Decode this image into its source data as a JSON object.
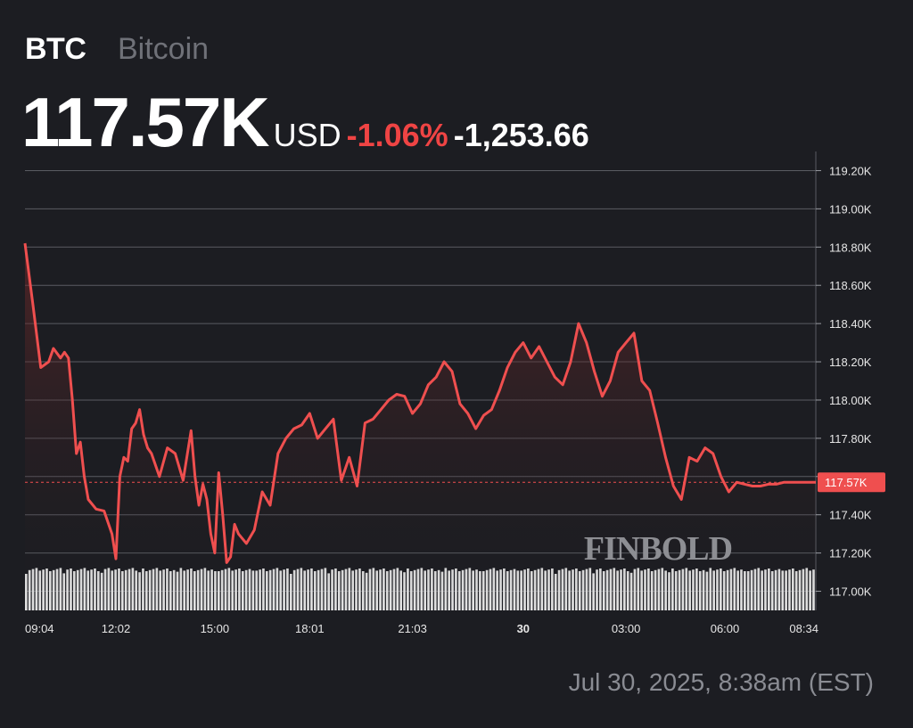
{
  "header": {
    "ticker": "BTC",
    "name": "Bitcoin",
    "price": "117.57K",
    "currency": "USD",
    "change_pct": "-1.06%",
    "change_abs": "-1,253.66"
  },
  "footer": {
    "date": "Jul 30, 2025, 8:38am (EST)"
  },
  "watermark": "FINBOLD",
  "colors": {
    "background": "#1c1d22",
    "line": "#ef4f4f",
    "negative": "#ef4444",
    "volume": "#e2e2e2",
    "grid": "#5a5c63"
  },
  "chart_data": {
    "type": "area",
    "ylim": [
      116.9,
      119.3
    ],
    "y_unit": "K USD",
    "y_ticks": [
      "117.00K",
      "117.20K",
      "117.40K",
      "117.60K",
      "117.80K",
      "118.00K",
      "118.20K",
      "118.40K",
      "118.60K",
      "118.80K",
      "119.00K",
      "119.20K"
    ],
    "y_tick_values": [
      117.0,
      117.2,
      117.4,
      117.6,
      117.8,
      118.0,
      118.2,
      118.4,
      118.6,
      118.8,
      119.0,
      119.2
    ],
    "x_ticks": [
      "09:04",
      "12:02",
      "15:00",
      "18:01",
      "21:03",
      "30",
      "03:00",
      "06:00",
      "08:34"
    ],
    "x_tick_positions": [
      0,
      0.115,
      0.24,
      0.36,
      0.49,
      0.63,
      0.76,
      0.885,
      0.985
    ],
    "current_label": "117.57K",
    "current_value": 117.57,
    "series": [
      {
        "x": [
          0,
          0.01,
          0.02,
          0.03,
          0.036,
          0.045,
          0.05,
          0.055,
          0.06,
          0.065,
          0.07,
          0.075,
          0.08,
          0.09,
          0.1,
          0.11,
          0.115,
          0.12,
          0.125,
          0.13,
          0.135,
          0.14,
          0.145,
          0.15,
          0.155,
          0.16,
          0.17,
          0.18,
          0.19,
          0.2,
          0.21,
          0.215,
          0.22,
          0.225,
          0.23,
          0.235,
          0.24,
          0.245,
          0.25,
          0.255,
          0.26,
          0.265,
          0.27,
          0.28,
          0.29,
          0.3,
          0.31,
          0.32,
          0.33,
          0.34,
          0.35,
          0.36,
          0.37,
          0.38,
          0.39,
          0.4,
          0.41,
          0.42,
          0.43,
          0.44,
          0.45,
          0.46,
          0.47,
          0.48,
          0.49,
          0.5,
          0.51,
          0.52,
          0.53,
          0.54,
          0.55,
          0.56,
          0.57,
          0.58,
          0.59,
          0.6,
          0.61,
          0.62,
          0.63,
          0.64,
          0.65,
          0.66,
          0.67,
          0.68,
          0.69,
          0.7,
          0.71,
          0.72,
          0.73,
          0.74,
          0.75,
          0.76,
          0.77,
          0.78,
          0.79,
          0.8,
          0.81,
          0.82,
          0.83,
          0.84,
          0.85,
          0.86,
          0.87,
          0.88,
          0.89,
          0.9,
          0.91,
          0.92,
          0.93,
          0.94,
          0.95,
          0.96,
          0.97,
          0.98,
          0.99,
          1.0
        ],
        "values": [
          118.82,
          118.5,
          118.17,
          118.2,
          118.27,
          118.22,
          118.25,
          118.22,
          118.0,
          117.72,
          117.78,
          117.6,
          117.48,
          117.43,
          117.42,
          117.3,
          117.17,
          117.6,
          117.7,
          117.68,
          117.85,
          117.88,
          117.95,
          117.82,
          117.75,
          117.72,
          117.6,
          117.75,
          117.72,
          117.58,
          117.84,
          117.6,
          117.45,
          117.56,
          117.48,
          117.3,
          117.2,
          117.62,
          117.4,
          117.15,
          117.18,
          117.35,
          117.3,
          117.25,
          117.32,
          117.52,
          117.45,
          117.72,
          117.8,
          117.85,
          117.87,
          117.93,
          117.8,
          117.85,
          117.9,
          117.58,
          117.7,
          117.55,
          117.88,
          117.9,
          117.95,
          118.0,
          118.03,
          118.02,
          117.93,
          117.98,
          118.08,
          118.12,
          118.2,
          118.15,
          117.98,
          117.93,
          117.85,
          117.92,
          117.95,
          118.05,
          118.17,
          118.25,
          118.3,
          118.22,
          118.28,
          118.2,
          118.12,
          118.08,
          118.2,
          118.4,
          118.3,
          118.15,
          118.02,
          118.1,
          118.25,
          118.3,
          118.35,
          118.1,
          118.05,
          117.88,
          117.7,
          117.55,
          117.48,
          117.7,
          117.68,
          117.75,
          117.72,
          117.6,
          117.52,
          117.57,
          117.56,
          117.55,
          117.55,
          117.56,
          117.56,
          117.57,
          117.57,
          117.57,
          117.57,
          117.57
        ]
      }
    ]
  }
}
